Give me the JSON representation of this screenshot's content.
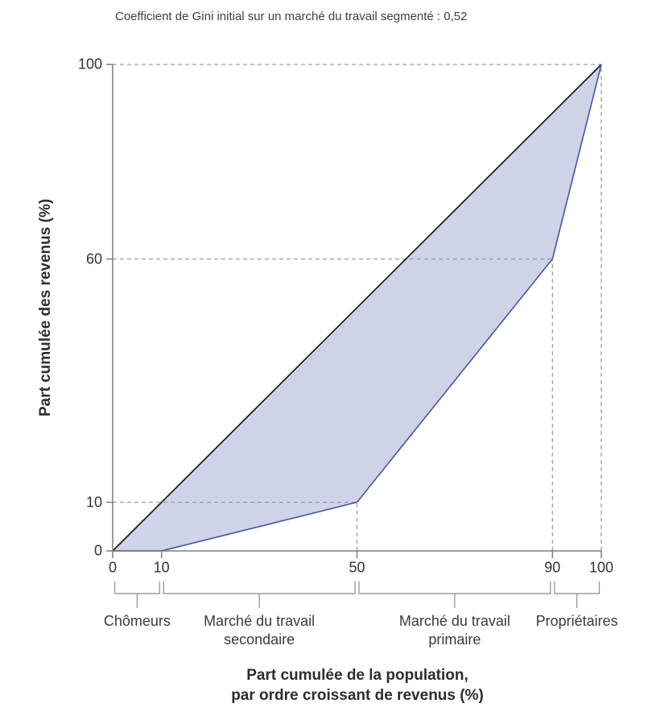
{
  "chart_data": {
    "type": "line",
    "title": "Coefficient de Gini initial sur un marché du travail segmenté : 0,52",
    "xlabel": "Part cumulée de la population,\npar ordre croissant de revenus (%)",
    "ylabel": "Part cumulée des revenus (%)",
    "xlim": [
      0,
      100
    ],
    "ylim": [
      0,
      100
    ],
    "x_ticks": [
      0,
      10,
      50,
      90,
      100
    ],
    "y_ticks": [
      0,
      10,
      60,
      100
    ],
    "grid": "off",
    "legend": "none",
    "series": [
      {
        "name": "ligne-egalite-parfaite",
        "points": [
          [
            0,
            0
          ],
          [
            100,
            100
          ]
        ]
      },
      {
        "name": "courbe-de-lorenz",
        "points": [
          [
            0,
            0
          ],
          [
            10,
            0
          ],
          [
            50,
            10
          ],
          [
            90,
            60
          ],
          [
            100,
            100
          ]
        ]
      }
    ],
    "guides": [
      {
        "x1": 0,
        "y1": 100,
        "x2": 100,
        "y2": 100
      },
      {
        "x1": 0,
        "y1": 60,
        "x2": 90,
        "y2": 60
      },
      {
        "x1": 0,
        "y1": 10,
        "x2": 50,
        "y2": 10
      },
      {
        "x1": 50,
        "y1": 0,
        "x2": 50,
        "y2": 10
      },
      {
        "x1": 90,
        "y1": 0,
        "x2": 90,
        "y2": 60
      },
      {
        "x1": 100,
        "y1": 0,
        "x2": 100,
        "y2": 100
      }
    ],
    "segments": [
      {
        "from": 0,
        "to": 10,
        "label": "Chômeurs"
      },
      {
        "from": 10,
        "to": 50,
        "label": "Marché du travail\nsecondaire"
      },
      {
        "from": 50,
        "to": 90,
        "label": "Marché du travail\nprimaire"
      },
      {
        "from": 90,
        "to": 100,
        "label": "Propriétaires"
      }
    ],
    "colors": {
      "area_fill": "#cfd3e8",
      "lorenz_line": "#5059ac",
      "equality_line": "#16161e",
      "axis": "#7d7d7d",
      "guide": "#9c9c9c",
      "bracket": "#9c9c9c",
      "text": "#3a3a3a"
    }
  }
}
